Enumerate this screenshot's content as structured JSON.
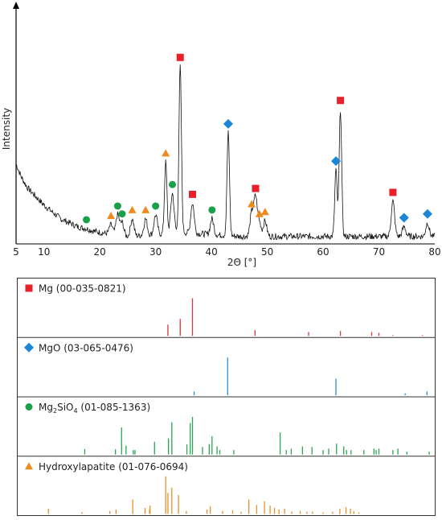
{
  "chart_data": [
    {
      "type": "line",
      "xlabel": "2Θ [°]",
      "ylabel": "Intensity",
      "xlim": [
        5,
        80
      ],
      "ylim": [
        0,
        100
      ],
      "x_ticks": [
        "5",
        "10",
        "20",
        "30",
        "40",
        "50",
        "60",
        "70",
        "80"
      ],
      "baseline": [
        [
          5,
          40
        ],
        [
          6,
          33
        ],
        [
          7,
          28
        ],
        [
          8,
          25
        ],
        [
          10,
          19
        ],
        [
          13,
          12
        ],
        [
          16,
          8
        ],
        [
          20,
          5
        ],
        [
          25,
          3
        ],
        [
          30,
          4
        ],
        [
          35,
          5
        ],
        [
          40,
          4
        ],
        [
          45,
          3
        ],
        [
          50,
          3
        ],
        [
          55,
          3
        ],
        [
          60,
          3
        ],
        [
          65,
          3
        ],
        [
          70,
          3
        ],
        [
          75,
          3
        ],
        [
          80,
          3
        ]
      ],
      "peaks": [
        {
          "x": 17.6,
          "y": 7,
          "marker": "Mg2SiO4"
        },
        {
          "x": 22.0,
          "y": 9,
          "marker": "Hydroxylapatite"
        },
        {
          "x": 23.2,
          "y": 14,
          "marker": "Mg2SiO4"
        },
        {
          "x": 24.0,
          "y": 10,
          "marker": "Mg2SiO4"
        },
        {
          "x": 25.8,
          "y": 12,
          "marker": "Hydroxylapatite"
        },
        {
          "x": 28.2,
          "y": 12,
          "marker": "Hydroxylapatite"
        },
        {
          "x": 30.0,
          "y": 14,
          "marker": "Mg2SiO4"
        },
        {
          "x": 31.8,
          "y": 41,
          "marker": "Hydroxylapatite"
        },
        {
          "x": 33.0,
          "y": 25,
          "marker": "Mg2SiO4"
        },
        {
          "x": 34.4,
          "y": 90,
          "marker": "Mg"
        },
        {
          "x": 36.6,
          "y": 20,
          "marker": "Mg"
        },
        {
          "x": 40.1,
          "y": 12,
          "marker": "Mg2SiO4"
        },
        {
          "x": 43.0,
          "y": 56,
          "marker": "MgO"
        },
        {
          "x": 47.2,
          "y": 15,
          "marker": "Hydroxylapatite"
        },
        {
          "x": 47.9,
          "y": 23,
          "marker": "Mg"
        },
        {
          "x": 48.6,
          "y": 10,
          "marker": "Hydroxylapatite"
        },
        {
          "x": 49.6,
          "y": 11,
          "marker": "Hydroxylapatite"
        },
        {
          "x": 62.3,
          "y": 37,
          "marker": "MgO"
        },
        {
          "x": 63.1,
          "y": 68,
          "marker": "Mg"
        },
        {
          "x": 72.5,
          "y": 21,
          "marker": "Mg"
        },
        {
          "x": 74.5,
          "y": 8,
          "marker": "MgO"
        },
        {
          "x": 78.7,
          "y": 10,
          "marker": "MgO"
        }
      ]
    },
    {
      "type": "bar",
      "xlim": [
        5,
        80
      ],
      "panels": [
        {
          "name": "Mg (00-035-0821)",
          "label_main": "Mg",
          "label_sub": "",
          "label_rest": " (00-035-0821)",
          "marker": "square",
          "color": "#e8202a",
          "line_color": "#d9343a",
          "lines": [
            [
              32.2,
              30
            ],
            [
              34.4,
              45
            ],
            [
              36.6,
              100
            ],
            [
              47.8,
              15
            ],
            [
              57.4,
              10
            ],
            [
              63.1,
              13
            ],
            [
              68.7,
              10
            ],
            [
              70.0,
              8
            ],
            [
              72.5,
              2
            ],
            [
              77.8,
              2
            ]
          ]
        },
        {
          "name": "MgO (03-065-0476)",
          "label_main": "MgO",
          "label_sub": "",
          "label_rest": " (03-065-0476)",
          "marker": "diamond",
          "color": "#1b86d6",
          "line_color": "#2a8fd0",
          "lines": [
            [
              36.9,
              10
            ],
            [
              42.9,
              100
            ],
            [
              62.3,
              44
            ],
            [
              74.7,
              5
            ],
            [
              78.6,
              10
            ]
          ]
        },
        {
          "name": "Mg2SiO4 (01-085-1363)",
          "label_main": "Mg",
          "label_sub": "2",
          "label_mid": "SiO",
          "label_sub2": "4",
          "label_rest": " (01-085-1363)",
          "marker": "circle",
          "color": "#1aa04a",
          "line_color": "#2aa653",
          "lines": [
            [
              17.3,
              15
            ],
            [
              22.8,
              14
            ],
            [
              23.9,
              72
            ],
            [
              24.7,
              24
            ],
            [
              26.0,
              12
            ],
            [
              26.3,
              12
            ],
            [
              29.8,
              34
            ],
            [
              32.3,
              43
            ],
            [
              32.9,
              86
            ],
            [
              35.6,
              27
            ],
            [
              36.2,
              84
            ],
            [
              36.6,
              100
            ],
            [
              38.4,
              20
            ],
            [
              39.6,
              28
            ],
            [
              40.1,
              49
            ],
            [
              41.0,
              22
            ],
            [
              41.5,
              12
            ],
            [
              44.0,
              12
            ],
            [
              52.3,
              59
            ],
            [
              53.4,
              12
            ],
            [
              54.3,
              16
            ],
            [
              56.3,
              22
            ],
            [
              58.0,
              20
            ],
            [
              60.0,
              12
            ],
            [
              61.0,
              16
            ],
            [
              62.4,
              29
            ],
            [
              63.7,
              22
            ],
            [
              64.2,
              12
            ],
            [
              65.0,
              12
            ],
            [
              67.3,
              12
            ],
            [
              69.1,
              16
            ],
            [
              69.5,
              12
            ],
            [
              70.0,
              16
            ],
            [
              72.5,
              12
            ],
            [
              73.4,
              16
            ],
            [
              75.0,
              8
            ],
            [
              79.0,
              8
            ]
          ]
        },
        {
          "name": "Hydroxylapatite (01-076-0694)",
          "label_main": "Hydroxylapatite",
          "label_sub": "",
          "label_rest": " (01-076-0694)",
          "marker": "triangle",
          "color": "#f08a1e",
          "line_color": "#e8912a",
          "lines": [
            [
              10.8,
              14
            ],
            [
              16.8,
              5
            ],
            [
              21.8,
              8
            ],
            [
              22.9,
              12
            ],
            [
              25.9,
              38
            ],
            [
              28.1,
              16
            ],
            [
              28.9,
              12
            ],
            [
              29.0,
              22
            ],
            [
              31.8,
              100
            ],
            [
              32.2,
              56
            ],
            [
              32.9,
              70
            ],
            [
              34.1,
              50
            ],
            [
              35.5,
              8
            ],
            [
              39.2,
              12
            ],
            [
              39.8,
              20
            ],
            [
              42.0,
              8
            ],
            [
              43.8,
              10
            ],
            [
              45.3,
              6
            ],
            [
              46.7,
              38
            ],
            [
              48.1,
              24
            ],
            [
              49.5,
              34
            ],
            [
              50.5,
              22
            ],
            [
              51.3,
              16
            ],
            [
              52.1,
              12
            ],
            [
              53.1,
              14
            ],
            [
              54.4,
              6
            ],
            [
              55.9,
              8
            ],
            [
              57.1,
              6
            ],
            [
              58.1,
              6
            ],
            [
              60.0,
              4
            ],
            [
              61.7,
              6
            ],
            [
              63.0,
              14
            ],
            [
              64.1,
              18
            ],
            [
              64.9,
              14
            ],
            [
              65.5,
              8
            ],
            [
              66.4,
              4
            ]
          ]
        }
      ]
    }
  ]
}
